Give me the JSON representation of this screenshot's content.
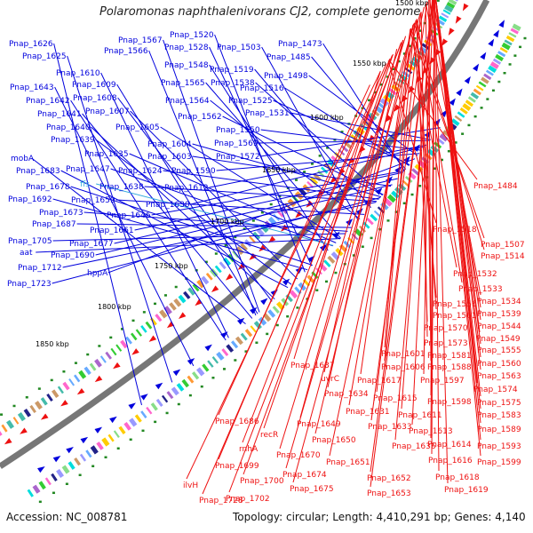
{
  "title": "Polaromonas naphthalenivorans CJ2, complete genome",
  "footer": {
    "accession": "Accession: NC_008781",
    "summary": "Topology: circular; Length: 4,410,291 bp; Genes: 4,140"
  },
  "colors": {
    "forward_strand": "#0000dd",
    "reverse_strand": "#ee1111",
    "rna_label": "#33aadd",
    "backbone": "#777777"
  },
  "kbp_ticks": [
    "1500 kbp",
    "1550 kbp",
    "1600 kbp",
    "1650 kbp",
    "1700 kbp",
    "1750 kbp",
    "1800 kbp",
    "1850 kbp"
  ],
  "forward_labels": [
    "Pnap_1626",
    "Pnap_1625",
    "Pnap_1567",
    "Pnap_1566",
    "Pnap_1520",
    "Pnap_1528",
    "Pnap_1503",
    "Pnap_1473",
    "Pnap_1485",
    "Pnap_1610",
    "Pnap_1643",
    "Pnap_1609",
    "Pnap_1548",
    "Pnap_1519",
    "Pnap_1498",
    "Pnap_1642",
    "Pnap_1608",
    "Pnap_1565",
    "Pnap_1538",
    "Pnap_1516",
    "Pnap_1641",
    "Pnap_1607",
    "Pnap_1564",
    "Pnap_1525",
    "Pnap_1531",
    "Pnap_1640",
    "Pnap_1605",
    "Pnap_1562",
    "Pnap_1639",
    "Pnap_1550",
    "Pnap_1604",
    "Pnap_1569",
    "mobA",
    "Pnap_1635",
    "Pnap_1603",
    "Pnap_1572",
    "Pnap_1683",
    "Pnap_1647",
    "Pnap_1624",
    "Pnap_1590",
    "Pnap_1678",
    "ffs",
    "Pnap_1638",
    "Pnap_1612",
    "Pnap_1692",
    "Pnap_1659",
    "Pnap_1630",
    "Pnap_1673",
    "Pnap_1646",
    "Pnap_1687",
    "Pnap_1661",
    "Pnap_1705",
    "Pnap_1677",
    "aat",
    "Pnap_1690",
    "Pnap_1712",
    "hppA",
    "Pnap_1723"
  ],
  "reverse_labels": [
    "Pnap_1484",
    "Pnap_1518",
    "Pnap_1507",
    "Pnap_1514",
    "Pnap_1532",
    "Pnap_1533",
    "Pnap_1556",
    "Pnap_1534",
    "Pnap_1561",
    "Pnap_1539",
    "Pnap_1570",
    "Pnap_1544",
    "Pnap_1573",
    "Pnap_1549",
    "Pnap_1601",
    "Pnap_1581",
    "Pnap_1555",
    "Pnap_1637",
    "Pnap_1606",
    "Pnap_1588",
    "Pnap_1560",
    "uvrC",
    "Pnap_1617",
    "Pnap_1597",
    "Pnap_1563",
    "Pnap_1634",
    "Pnap_1615",
    "Pnap_1574",
    "Pnap_1631",
    "Pnap_1611",
    "Pnap_1598",
    "Pnap_1575",
    "Pnap_1686",
    "Pnap_1649",
    "Pnap_1633",
    "Pnap_1613",
    "Pnap_1583",
    "recR",
    "Pnap_1650",
    "Pnap_1636",
    "Pnap_1614",
    "Pnap_1589",
    "rnhA",
    "Pnap_1670",
    "Pnap_1616",
    "Pnap_1593",
    "Pnap_1699",
    "Pnap_1651",
    "Pnap_1599",
    "Pnap_1674",
    "Pnap_1700",
    "Pnap_1618",
    "ilvH",
    "Pnap_1675",
    "Pnap_1652",
    "Pnap_1619",
    "Pnap_1702",
    "Pnap_1653",
    "Pnap_1728"
  ]
}
